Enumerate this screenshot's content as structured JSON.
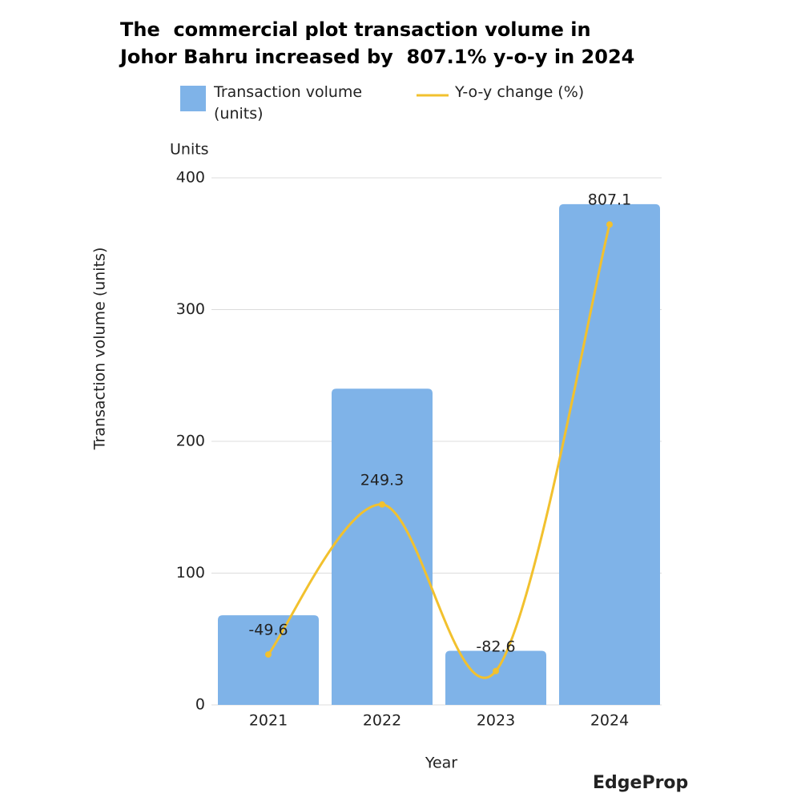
{
  "chart_data": {
    "type": "bar_line",
    "title": "The  commercial plot transaction volume in Johor Bahru increased by  807.1% y-o-y in 2024",
    "y_unit_label": "Units",
    "y_axis_label": "Transaction volume (units)",
    "x_axis_label": "Year",
    "logo": "EdgeProp",
    "categories": [
      "2021",
      "2022",
      "2023",
      "2024"
    ],
    "ylim": [
      0,
      400
    ],
    "yticks": [
      0,
      100,
      200,
      300,
      400
    ],
    "y2lim": [
      -150,
      900
    ],
    "grid": true,
    "series": [
      {
        "name": "Transaction volume (units)",
        "type": "bar",
        "color": "#7fb3e8",
        "values": [
          68,
          240,
          41,
          380
        ]
      },
      {
        "name": "Y-o-y change (%)",
        "type": "line",
        "axis": "y2",
        "color": "#f2c12e",
        "values": [
          -49.6,
          249.3,
          -82.6,
          807.1
        ]
      }
    ]
  }
}
